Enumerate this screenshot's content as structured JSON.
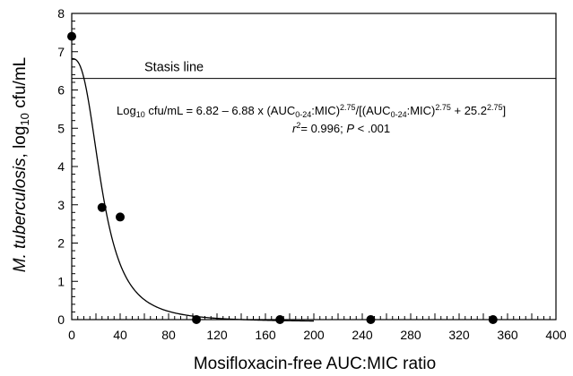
{
  "chart_data": {
    "type": "scatter",
    "xlabel": "Mosifloxacin-free AUC:MIC ratio",
    "ylabel_italic": "M. tuberculosis",
    "ylabel_pre": ", log",
    "ylabel_sub": "10",
    "ylabel_post": " cfu/mL",
    "xlim": [
      0,
      400
    ],
    "ylim": [
      0,
      8
    ],
    "x_ticks": [
      0,
      40,
      80,
      120,
      160,
      200,
      240,
      280,
      320,
      360,
      400
    ],
    "y_ticks": [
      0,
      1,
      2,
      3,
      4,
      5,
      6,
      7,
      8
    ],
    "points": [
      {
        "x": 0,
        "y": 7.4
      },
      {
        "x": 25,
        "y": 2.93
      },
      {
        "x": 40,
        "y": 2.68
      },
      {
        "x": 103,
        "y": 0
      },
      {
        "x": 172,
        "y": 0
      },
      {
        "x": 247,
        "y": 0
      },
      {
        "x": 348,
        "y": 0
      }
    ],
    "stasis": {
      "y": 6.3,
      "label": "Stasis line"
    },
    "model": {
      "e0": 6.82,
      "emax": 6.88,
      "ec50": 25.2,
      "hill": 2.75
    },
    "equation": {
      "p1": "Log",
      "p1_sub": "10",
      "p2": " cfu/mL = 6.82 – 6.88 x (AUC",
      "p2_sub": "0-24",
      "p3": ":MIC)",
      "p3_sup": "2.75",
      "p4": "/[(AUC",
      "p4_sub": "0-24",
      "p5": ":MIC)",
      "p5_sup": "2.75",
      "p6": " + 25.2",
      "p6_sup": "2.75",
      "p7": "]"
    },
    "stats": {
      "r": "r",
      "r_sup": "2",
      "rest1": "= 0.996; ",
      "p": "P",
      "rest2": " < .001"
    }
  }
}
